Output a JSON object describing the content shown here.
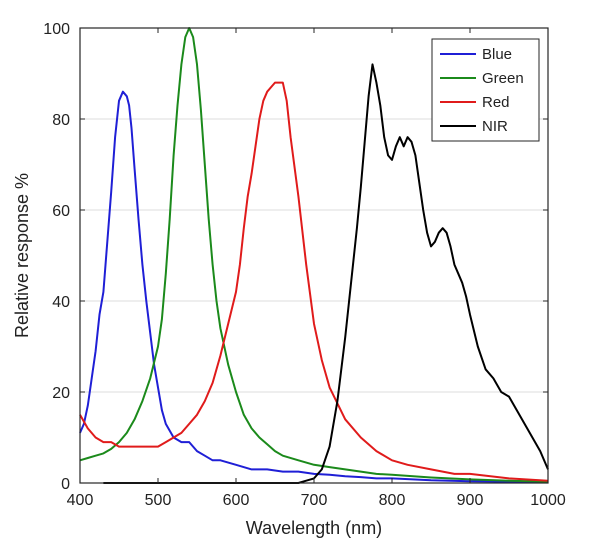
{
  "chart_data": {
    "type": "line",
    "xlabel": "Wavelength (nm)",
    "ylabel": "Relative response %",
    "xlim": [
      400,
      1000
    ],
    "ylim": [
      0,
      100
    ],
    "xticks": [
      400,
      500,
      600,
      700,
      800,
      900,
      1000
    ],
    "yticks": [
      0,
      20,
      40,
      60,
      80,
      100
    ],
    "grid": "horizontal",
    "legend_position": "top-right",
    "series": [
      {
        "name": "Blue",
        "color": "#1f1fd6",
        "x": [
          400,
          405,
          410,
          415,
          420,
          425,
          430,
          435,
          440,
          445,
          450,
          455,
          460,
          463,
          466,
          470,
          475,
          480,
          485,
          490,
          495,
          500,
          505,
          510,
          520,
          530,
          540,
          550,
          560,
          570,
          580,
          600,
          620,
          640,
          660,
          680,
          700,
          720,
          740,
          760,
          780,
          800,
          850,
          900,
          950,
          1000
        ],
        "y": [
          11,
          13,
          17,
          23,
          29,
          37,
          42,
          53,
          64,
          76,
          84,
          86,
          85,
          83,
          78,
          69,
          58,
          48,
          40,
          33,
          26,
          21,
          16,
          13,
          10,
          9,
          9,
          7,
          6,
          5,
          5,
          4,
          3,
          3,
          2.5,
          2.5,
          2,
          1.8,
          1.5,
          1.3,
          1,
          1,
          0.6,
          0.4,
          0.3,
          0.2
        ]
      },
      {
        "name": "Green",
        "color": "#1b8a1b",
        "x": [
          400,
          410,
          420,
          430,
          440,
          450,
          460,
          470,
          480,
          490,
          500,
          505,
          510,
          515,
          520,
          525,
          530,
          535,
          540,
          545,
          550,
          555,
          560,
          565,
          570,
          575,
          580,
          590,
          600,
          610,
          620,
          630,
          640,
          650,
          660,
          680,
          700,
          720,
          740,
          760,
          780,
          800,
          850,
          900,
          950,
          1000
        ],
        "y": [
          5,
          5.5,
          6,
          6.5,
          7.5,
          9,
          11,
          14,
          18,
          23,
          30,
          36,
          46,
          58,
          72,
          83,
          92,
          98,
          100,
          98,
          92,
          82,
          70,
          58,
          48,
          40,
          34,
          26,
          20,
          15,
          12,
          10,
          8.5,
          7,
          6,
          5,
          4,
          3.5,
          3,
          2.5,
          2,
          1.8,
          1.2,
          0.8,
          0.5,
          0.3
        ]
      },
      {
        "name": "Red",
        "color": "#e01b1b",
        "x": [
          400,
          410,
          420,
          430,
          440,
          450,
          460,
          470,
          480,
          490,
          500,
          510,
          520,
          530,
          540,
          550,
          560,
          570,
          580,
          590,
          600,
          605,
          610,
          615,
          620,
          625,
          630,
          635,
          640,
          645,
          650,
          655,
          660,
          665,
          670,
          680,
          690,
          700,
          710,
          720,
          740,
          760,
          780,
          800,
          820,
          850,
          880,
          900,
          950,
          1000
        ],
        "y": [
          15,
          12,
          10,
          9,
          9,
          8,
          8,
          8,
          8,
          8,
          8,
          9,
          10,
          11,
          13,
          15,
          18,
          22,
          28,
          35,
          42,
          48,
          56,
          63,
          68,
          74,
          80,
          84,
          86,
          87,
          88,
          88,
          88,
          84,
          76,
          63,
          48,
          35,
          27,
          21,
          14,
          10,
          7,
          5,
          4,
          3,
          2,
          2,
          1,
          0.5
        ]
      },
      {
        "name": "NIR",
        "color": "#000000",
        "x": [
          430,
          500,
          550,
          600,
          650,
          680,
          690,
          700,
          710,
          720,
          730,
          740,
          750,
          755,
          760,
          765,
          770,
          775,
          780,
          785,
          790,
          795,
          800,
          805,
          810,
          815,
          820,
          825,
          830,
          835,
          840,
          845,
          850,
          855,
          860,
          865,
          870,
          875,
          880,
          885,
          890,
          895,
          900,
          910,
          920,
          930,
          940,
          950,
          960,
          970,
          980,
          990,
          1000
        ],
        "y": [
          0,
          0,
          0,
          0,
          0,
          0,
          0.5,
          1,
          3,
          8,
          18,
          32,
          48,
          56,
          65,
          75,
          85,
          92,
          88,
          83,
          76,
          72,
          71,
          74,
          76,
          74,
          76,
          75,
          72,
          66,
          60,
          55,
          52,
          53,
          55,
          56,
          55,
          52,
          48,
          46,
          44,
          41,
          37,
          30,
          25,
          23,
          20,
          19,
          16,
          13,
          10,
          7,
          3
        ]
      }
    ]
  }
}
